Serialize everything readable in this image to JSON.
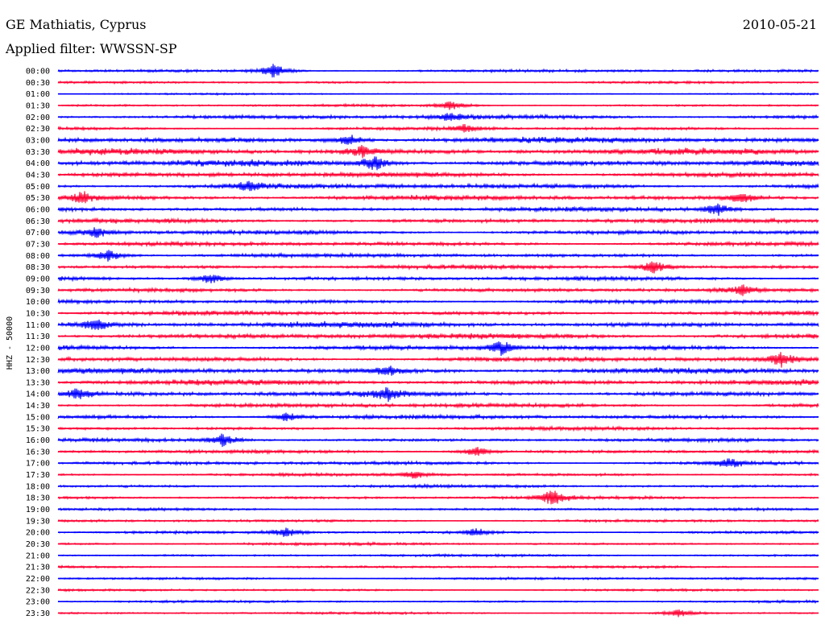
{
  "header": {
    "station": "GE Mathiatis, Cyprus",
    "date": "2010-05-21",
    "filter": "Applied filter: WWSSN-SP"
  },
  "colors": {
    "even_trace": "#0000ff",
    "odd_trace": "#ff0033"
  },
  "chart_data": {
    "type": "line",
    "title": "GE Mathiatis, Cyprus",
    "subtitle": "Applied filter: WWSSN-SP",
    "ylabel": "HHZ - 50000",
    "xlabel": "",
    "grid": false,
    "legend": "none",
    "categories": [
      "00:00",
      "00:30",
      "01:00",
      "01:30",
      "02:00",
      "02:30",
      "03:00",
      "03:30",
      "04:00",
      "04:30",
      "05:00",
      "05:30",
      "06:00",
      "06:30",
      "07:00",
      "07:30",
      "08:00",
      "08:30",
      "09:00",
      "09:30",
      "10:00",
      "10:30",
      "11:00",
      "11:30",
      "12:00",
      "12:30",
      "13:00",
      "13:30",
      "14:00",
      "14:30",
      "15:00",
      "15:30",
      "16:00",
      "16:30",
      "17:00",
      "17:30",
      "18:00",
      "18:30",
      "19:00",
      "19:30",
      "20:00",
      "20:30",
      "21:00",
      "21:30",
      "22:00",
      "22:30",
      "23:00",
      "23:30"
    ],
    "noise_level": [
      1.5,
      1.2,
      0.9,
      1.3,
      2.2,
      1.6,
      3.0,
      3.2,
      3.2,
      2.6,
      2.6,
      2.6,
      2.3,
      2.3,
      2.3,
      2.1,
      2.1,
      2.1,
      2.1,
      2.0,
      2.0,
      2.2,
      3.0,
      2.8,
      2.4,
      2.6,
      2.8,
      2.8,
      2.6,
      2.2,
      2.2,
      1.8,
      1.8,
      1.8,
      1.8,
      1.6,
      1.6,
      1.6,
      1.4,
      1.4,
      1.4,
      1.4,
      1.3,
      1.3,
      1.3,
      1.2,
      1.2,
      1.2
    ],
    "events": [
      {
        "row": 0,
        "minute": 8.5,
        "amplitude": 9
      },
      {
        "row": 3,
        "minute": 15.5,
        "amplitude": 6
      },
      {
        "row": 4,
        "minute": 15.5,
        "amplitude": 5
      },
      {
        "row": 5,
        "minute": 16.0,
        "amplitude": 5
      },
      {
        "row": 6,
        "minute": 11.5,
        "amplitude": 7
      },
      {
        "row": 7,
        "minute": 12.0,
        "amplitude": 6
      },
      {
        "row": 8,
        "minute": 12.5,
        "amplitude": 9
      },
      {
        "row": 10,
        "minute": 7.5,
        "amplitude": 6
      },
      {
        "row": 11,
        "minute": 1.0,
        "amplitude": 7
      },
      {
        "row": 11,
        "minute": 27.0,
        "amplitude": 6
      },
      {
        "row": 12,
        "minute": 26.0,
        "amplitude": 8
      },
      {
        "row": 14,
        "minute": 1.5,
        "amplitude": 7
      },
      {
        "row": 16,
        "minute": 2.0,
        "amplitude": 8
      },
      {
        "row": 17,
        "minute": 23.5,
        "amplitude": 9
      },
      {
        "row": 18,
        "minute": 6.0,
        "amplitude": 7
      },
      {
        "row": 19,
        "minute": 27.0,
        "amplitude": 6
      },
      {
        "row": 22,
        "minute": 1.5,
        "amplitude": 7
      },
      {
        "row": 24,
        "minute": 17.5,
        "amplitude": 9
      },
      {
        "row": 25,
        "minute": 28.5,
        "amplitude": 9
      },
      {
        "row": 26,
        "minute": 13.0,
        "amplitude": 6
      },
      {
        "row": 28,
        "minute": 13.0,
        "amplitude": 8
      },
      {
        "row": 28,
        "minute": 0.8,
        "amplitude": 7
      },
      {
        "row": 30,
        "minute": 9.0,
        "amplitude": 6
      },
      {
        "row": 32,
        "minute": 6.5,
        "amplitude": 8
      },
      {
        "row": 33,
        "minute": 16.5,
        "amplitude": 7
      },
      {
        "row": 34,
        "minute": 26.5,
        "amplitude": 6
      },
      {
        "row": 35,
        "minute": 14.0,
        "amplitude": 5
      },
      {
        "row": 37,
        "minute": 19.5,
        "amplitude": 10
      },
      {
        "row": 40,
        "minute": 9.0,
        "amplitude": 6
      },
      {
        "row": 40,
        "minute": 16.5,
        "amplitude": 5
      },
      {
        "row": 47,
        "minute": 24.5,
        "amplitude": 5
      }
    ]
  }
}
